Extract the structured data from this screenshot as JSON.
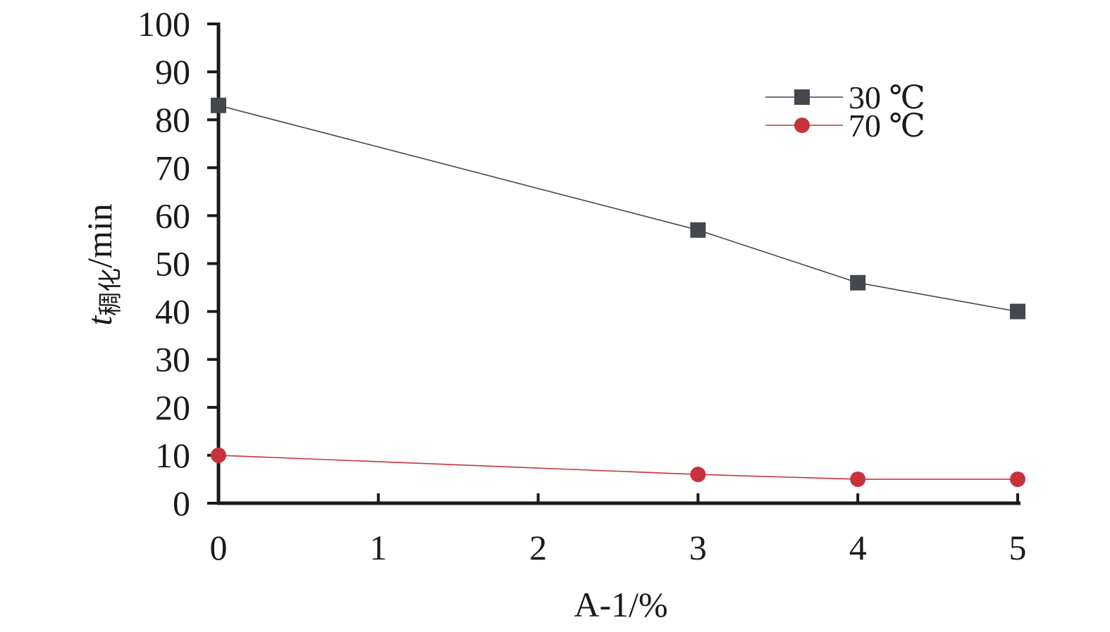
{
  "chart_data": {
    "type": "line",
    "title": "",
    "xlabel": "A-1/%",
    "ylabel": {
      "main": "t",
      "subscript": "稠化",
      "unit": "/min"
    },
    "xlim": [
      0,
      5
    ],
    "ylim": [
      0,
      100
    ],
    "xticks": [
      0,
      1,
      2,
      3,
      4,
      5
    ],
    "yticks": [
      0,
      10,
      20,
      30,
      40,
      50,
      60,
      70,
      80,
      90,
      100
    ],
    "grid": false,
    "legend_position": "top-right",
    "series": [
      {
        "name": "30 ℃",
        "marker": "square",
        "color": "#45474f",
        "x": [
          0,
          3,
          4,
          5
        ],
        "y": [
          83,
          57,
          46,
          40
        ]
      },
      {
        "name": "70 ℃",
        "marker": "circle",
        "color": "#c8323c",
        "x": [
          0,
          3,
          4,
          5
        ],
        "y": [
          10,
          6,
          5,
          5
        ]
      }
    ]
  }
}
